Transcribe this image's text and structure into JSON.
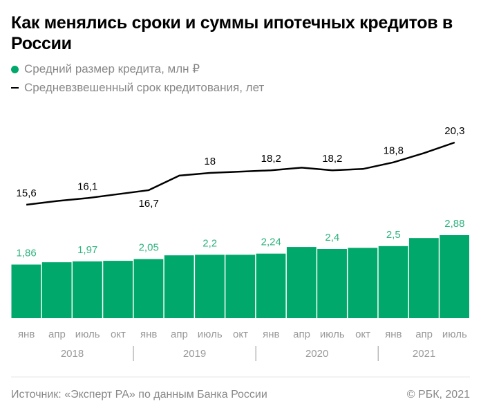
{
  "title": "Как менялись сроки и суммы ипотечных кредитов в России",
  "legend": [
    {
      "label": "Средний размер кредита, млн ₽",
      "color": "#00a86b",
      "marker": "dot"
    },
    {
      "label": "Средневзвешенный срок кредитования, лет",
      "color": "#000000",
      "marker": "line"
    }
  ],
  "chart_data": {
    "type": "bar+line",
    "categories": [
      "янв",
      "апр",
      "июль",
      "окт",
      "янв",
      "апр",
      "июль",
      "окт",
      "янв",
      "апр",
      "июль",
      "окт",
      "янв",
      "апр",
      "июль"
    ],
    "years": [
      "2018",
      "2019",
      "2020",
      "2021"
    ],
    "series": [
      {
        "name": "Средний размер кредита, млн ₽",
        "type": "bar",
        "color": "#00a86b",
        "values": [
          1.86,
          1.94,
          1.97,
          1.99,
          2.05,
          2.18,
          2.2,
          2.2,
          2.24,
          2.47,
          2.4,
          2.44,
          2.5,
          2.78,
          2.88
        ],
        "labels": [
          "1,86",
          "",
          "1,97",
          "",
          "2,05",
          "",
          "2,2",
          "",
          "2,24",
          "",
          "2,4",
          "",
          "2,5",
          "",
          "2,88"
        ]
      },
      {
        "name": "Средневзвешенный срок кредитования, лет",
        "type": "line",
        "color": "#000000",
        "values": [
          15.6,
          15.88,
          16.1,
          16.4,
          16.7,
          17.8,
          18.0,
          18.1,
          18.2,
          18.4,
          18.2,
          18.3,
          18.8,
          19.5,
          20.3
        ],
        "labels": [
          "15,6",
          "",
          "16,1",
          "",
          "16,7",
          "",
          "18",
          "",
          "18,2",
          "",
          "18,2",
          "",
          "18,8",
          "",
          "20,3"
        ]
      }
    ],
    "ylim_bar": [
      0,
      2.88
    ],
    "grid": false
  },
  "footer": {
    "source": "Источник: «Эксперт РА» по данным Банка России",
    "copyright": "© РБК, 2021"
  }
}
